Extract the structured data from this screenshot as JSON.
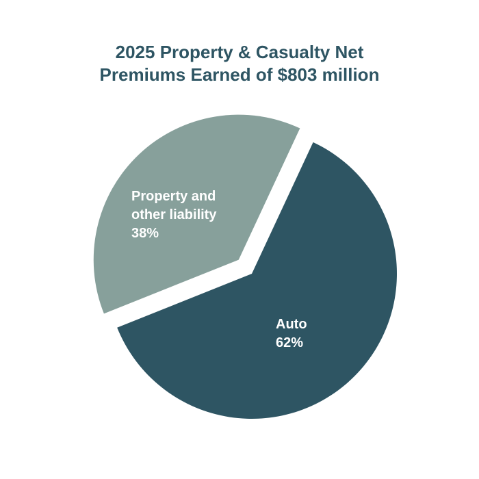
{
  "chart_data": {
    "type": "pie",
    "title_lines": [
      "2025 Property & Casualty Net",
      "Premiums Earned of $803 million"
    ],
    "slices": [
      {
        "label_lines": [
          "Auto"
        ],
        "percent_label": "62%",
        "value": 62,
        "color": "#2e5563",
        "exploded": false
      },
      {
        "label_lines": [
          "Property and",
          "other liability"
        ],
        "percent_label": "38%",
        "value": 38,
        "color": "#87a09b",
        "exploded": true
      }
    ],
    "start_angle_deg": 25,
    "legend": "none",
    "grid": false
  }
}
